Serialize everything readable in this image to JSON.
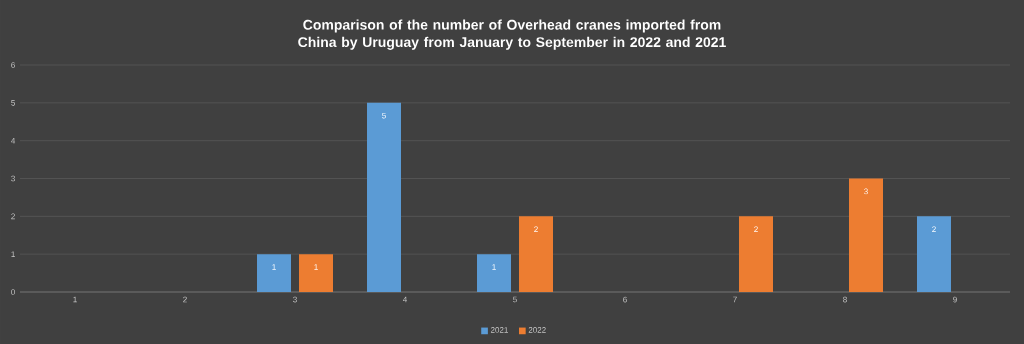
{
  "chart_data": {
    "type": "bar",
    "title": "Comparison of the number of Overhead cranes imported from China by Uruguay from January to September in 2022 and 2021",
    "categories": [
      "1",
      "2",
      "3",
      "4",
      "5",
      "6",
      "7",
      "8",
      "9"
    ],
    "series": [
      {
        "name": "2021",
        "color": "#5b9bd5",
        "values": [
          null,
          null,
          1,
          5,
          1,
          null,
          null,
          null,
          2
        ]
      },
      {
        "name": "2022",
        "color": "#ed7d31",
        "values": [
          null,
          null,
          1,
          null,
          2,
          null,
          2,
          3,
          null
        ]
      }
    ],
    "ylim": [
      0,
      6
    ],
    "yticks": [
      0,
      1,
      2,
      3,
      4,
      5,
      6
    ],
    "grid": "y",
    "legend": "bottom",
    "data_labels": true
  }
}
